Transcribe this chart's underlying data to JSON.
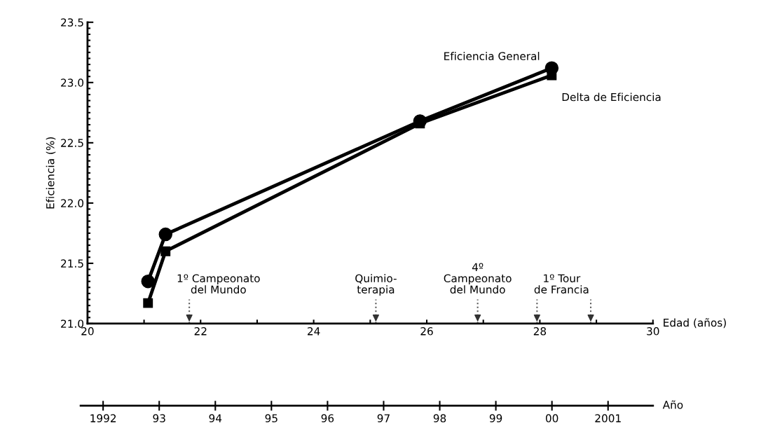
{
  "chart_data": {
    "type": "line",
    "xlabel": "Edad (años)",
    "ylabel": "Eficiencia (%)",
    "x2label": "Año",
    "xlim": [
      20,
      30
    ],
    "ylim": [
      21.0,
      23.5
    ],
    "xticks": [
      20,
      {
        "value": 21,
        "label": null
      },
      22,
      {
        "value": 23,
        "label": null
      },
      24,
      {
        "value": 25,
        "label": null
      },
      26,
      {
        "value": 27,
        "label": null
      },
      28,
      {
        "value": 29,
        "label": null
      },
      30
    ],
    "yticks": [
      {
        "value": 21.0,
        "label": "21.0"
      },
      21.5,
      {
        "value": 22.0,
        "label": "22.0"
      },
      22.5,
      {
        "value": 23.0,
        "label": "23.0"
      },
      23.5
    ],
    "x2lim": [
      1991.6,
      2001.8
    ],
    "x2ticks": [
      1992,
      {
        "value": 1993,
        "label": "93"
      },
      {
        "value": 1994,
        "label": "94"
      },
      {
        "value": 1995,
        "label": "95"
      },
      {
        "value": 1996,
        "label": "96"
      },
      {
        "value": 1997,
        "label": "97"
      },
      {
        "value": 1998,
        "label": "98"
      },
      {
        "value": 1999,
        "label": "99"
      },
      {
        "value": 2000,
        "label": "00"
      },
      2001
    ],
    "series": [
      {
        "name": "Eficiencia General",
        "color": "#000000",
        "marker": "circle",
        "x": [
          21.07,
          21.38,
          25.88,
          28.21
        ],
        "values": [
          21.35,
          21.74,
          22.68,
          23.12
        ]
      },
      {
        "name": "Delta de Eficiencia",
        "color": "#000000",
        "marker": "square",
        "x": [
          21.07,
          21.38,
          25.88,
          28.21
        ],
        "values": [
          21.17,
          21.6,
          22.66,
          23.06
        ]
      }
    ],
    "ref_lines": [
      {
        "axis": "x",
        "value": 21.8,
        "label": "1º Campeonato\ndel Mundo"
      },
      {
        "axis": "x",
        "value": 25.1,
        "label": "Quimio-\nterapia"
      },
      {
        "axis": "x",
        "value": 26.9,
        "label": "4º\nCampeonato\ndel Mundo"
      },
      {
        "axis": "x",
        "value": 27.95
      },
      {
        "axis": "x",
        "value": 28.9,
        "label": "1º Tour\nde Francia"
      }
    ],
    "grid": false,
    "line_style": "solid"
  }
}
